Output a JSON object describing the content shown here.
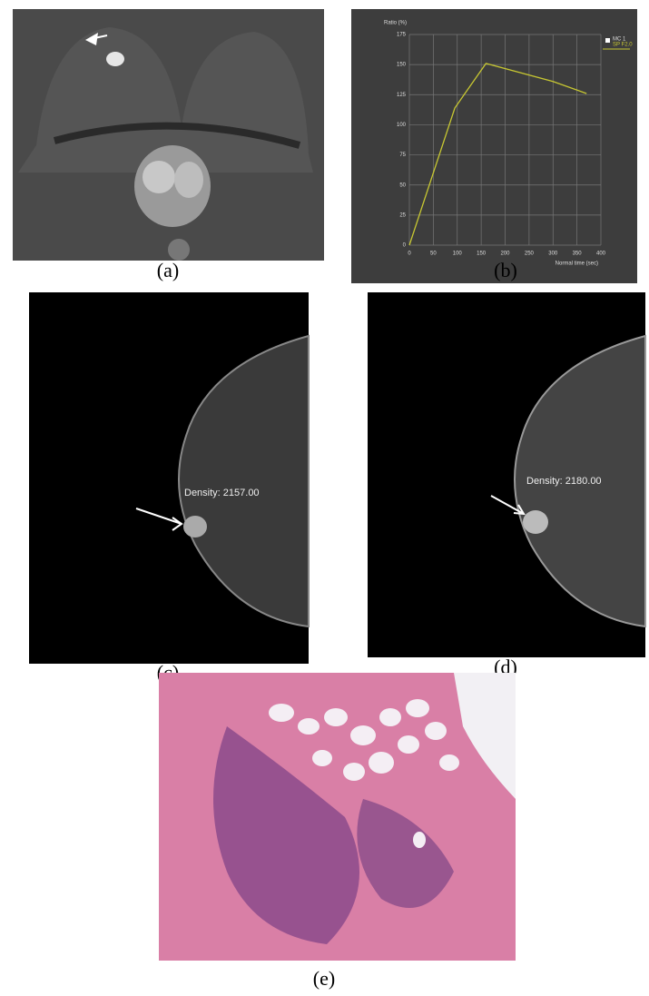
{
  "chart_data": {
    "type": "line",
    "ylabel": "Ratio (%)",
    "xlabel": "Normal time (sec)",
    "x": [
      0,
      95,
      160,
      300,
      370
    ],
    "series": [
      {
        "name": "MC 1",
        "color": "#c8c832",
        "values": [
          0,
          114,
          151,
          136,
          126
        ]
      }
    ],
    "legend_note": "SP F2.0",
    "xlim": [
      0,
      400
    ],
    "ylim": [
      0,
      175
    ],
    "xticks": [
      0,
      50,
      100,
      150,
      200,
      250,
      300,
      350,
      400
    ],
    "yticks": [
      0,
      25,
      50,
      75,
      100,
      125,
      150,
      175
    ],
    "grid": true,
    "legend": "upper right"
  },
  "panels": {
    "a": "(a)",
    "b": "(b)",
    "c": "(c)",
    "d": "(d)",
    "e": "(e)"
  },
  "annotations": {
    "c": "Density: 2157.00",
    "d": "Density: 2180.00"
  }
}
